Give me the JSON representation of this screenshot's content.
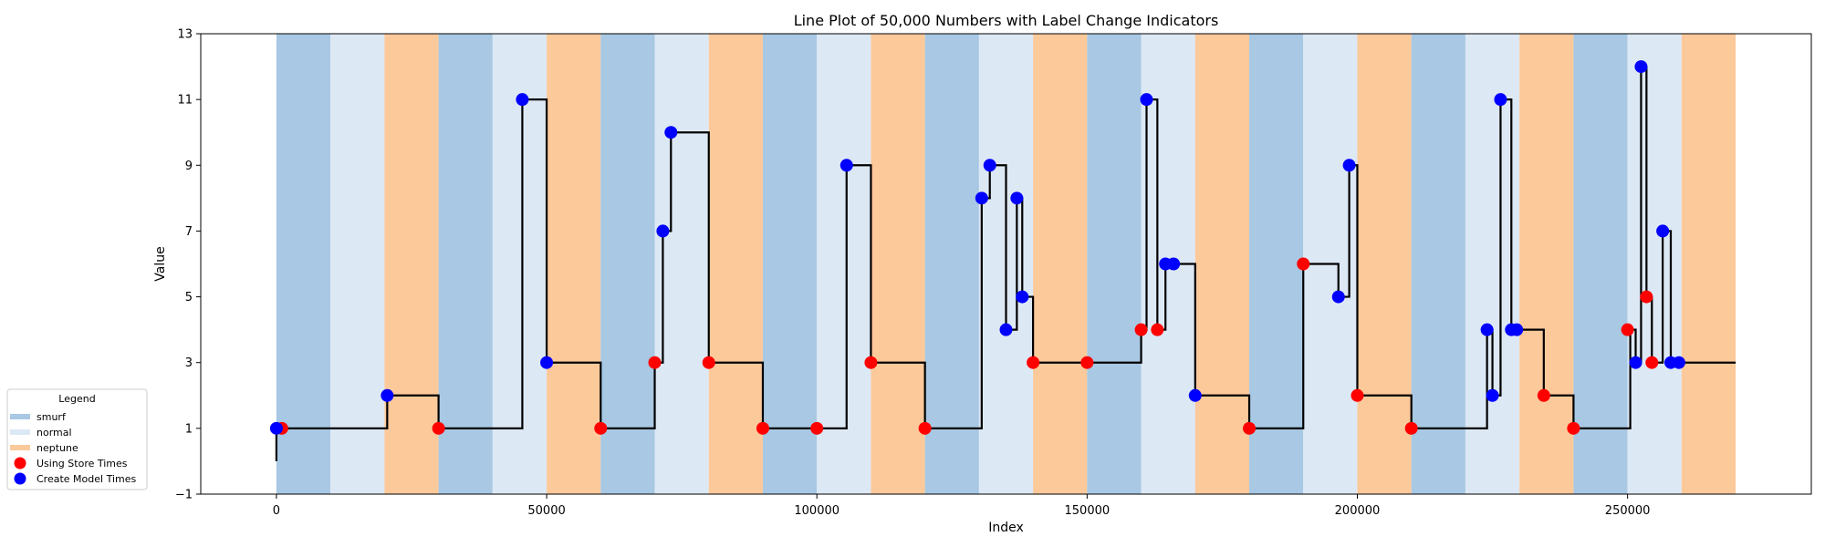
{
  "chart_data": {
    "type": "line",
    "title": "Line Plot of 50,000 Numbers with Label Change Indicators",
    "xlabel": "Index",
    "ylabel": "Value",
    "xlim": [
      -14000,
      284000
    ],
    "ylim": [
      -1,
      13
    ],
    "xticks": [
      0,
      50000,
      100000,
      150000,
      200000,
      250000
    ],
    "yticks": [
      -1,
      1,
      3,
      5,
      7,
      9,
      11,
      13
    ],
    "grid": false,
    "legend": {
      "title": "Legend",
      "placement": "lower-left outside",
      "entries": [
        {
          "label": "smurf",
          "kind": "patch",
          "color": "#a8c8e3"
        },
        {
          "label": "normal",
          "kind": "patch",
          "color": "#dde8f5"
        },
        {
          "label": "neptune",
          "kind": "patch",
          "color": "#fcc99b"
        },
        {
          "label": "Using Store Times",
          "kind": "marker",
          "color": "#ff0000"
        },
        {
          "label": "Create Model Times",
          "kind": "marker",
          "color": "#0000ff"
        }
      ]
    },
    "label_regions": [
      {
        "start": 0,
        "end": 10000,
        "label": "smurf"
      },
      {
        "start": 10000,
        "end": 20000,
        "label": "normal"
      },
      {
        "start": 20000,
        "end": 30000,
        "label": "neptune"
      },
      {
        "start": 30000,
        "end": 40000,
        "label": "smurf"
      },
      {
        "start": 40000,
        "end": 50000,
        "label": "normal"
      },
      {
        "start": 50000,
        "end": 60000,
        "label": "neptune"
      },
      {
        "start": 60000,
        "end": 70000,
        "label": "smurf"
      },
      {
        "start": 70000,
        "end": 80000,
        "label": "normal"
      },
      {
        "start": 80000,
        "end": 90000,
        "label": "neptune"
      },
      {
        "start": 90000,
        "end": 100000,
        "label": "smurf"
      },
      {
        "start": 100000,
        "end": 110000,
        "label": "normal"
      },
      {
        "start": 110000,
        "end": 120000,
        "label": "neptune"
      },
      {
        "start": 120000,
        "end": 130000,
        "label": "smurf"
      },
      {
        "start": 130000,
        "end": 140000,
        "label": "normal"
      },
      {
        "start": 140000,
        "end": 150000,
        "label": "neptune"
      },
      {
        "start": 150000,
        "end": 160000,
        "label": "smurf"
      },
      {
        "start": 160000,
        "end": 170000,
        "label": "normal"
      },
      {
        "start": 170000,
        "end": 180000,
        "label": "neptune"
      },
      {
        "start": 180000,
        "end": 190000,
        "label": "smurf"
      },
      {
        "start": 190000,
        "end": 200000,
        "label": "normal"
      },
      {
        "start": 200000,
        "end": 210000,
        "label": "neptune"
      },
      {
        "start": 210000,
        "end": 220000,
        "label": "smurf"
      },
      {
        "start": 220000,
        "end": 230000,
        "label": "normal"
      },
      {
        "start": 230000,
        "end": 240000,
        "label": "neptune"
      },
      {
        "start": 240000,
        "end": 250000,
        "label": "smurf"
      },
      {
        "start": 250000,
        "end": 260000,
        "label": "normal"
      },
      {
        "start": 260000,
        "end": 270000,
        "label": "neptune"
      }
    ],
    "series": [
      {
        "kind": "step-line",
        "color": "#000000",
        "points": [
          [
            0,
            0
          ],
          [
            0,
            1
          ],
          [
            20500,
            1
          ],
          [
            20500,
            2
          ],
          [
            30000,
            2
          ],
          [
            30000,
            1
          ],
          [
            45500,
            1
          ],
          [
            45500,
            11
          ],
          [
            50000,
            11
          ],
          [
            50000,
            3
          ],
          [
            60000,
            3
          ],
          [
            60000,
            1
          ],
          [
            70000,
            1
          ],
          [
            70000,
            3
          ],
          [
            71500,
            3
          ],
          [
            71500,
            7
          ],
          [
            73000,
            7
          ],
          [
            73000,
            10
          ],
          [
            80000,
            10
          ],
          [
            80000,
            3
          ],
          [
            90000,
            3
          ],
          [
            90000,
            1
          ],
          [
            105500,
            1
          ],
          [
            105500,
            9
          ],
          [
            110000,
            9
          ],
          [
            110000,
            3
          ],
          [
            120000,
            3
          ],
          [
            120000,
            1
          ],
          [
            130500,
            1
          ],
          [
            130500,
            8
          ],
          [
            132000,
            8
          ],
          [
            132000,
            9
          ],
          [
            135000,
            9
          ],
          [
            135000,
            4
          ],
          [
            137000,
            4
          ],
          [
            137000,
            8
          ],
          [
            138000,
            8
          ],
          [
            138000,
            5
          ],
          [
            140000,
            5
          ],
          [
            140000,
            3
          ],
          [
            160000,
            3
          ],
          [
            160000,
            4
          ],
          [
            161000,
            4
          ],
          [
            161000,
            11
          ],
          [
            163000,
            11
          ],
          [
            163000,
            4
          ],
          [
            164500,
            4
          ],
          [
            164500,
            6
          ],
          [
            170000,
            6
          ],
          [
            170000,
            2
          ],
          [
            180000,
            2
          ],
          [
            180000,
            1
          ],
          [
            190000,
            1
          ],
          [
            190000,
            6
          ],
          [
            196500,
            6
          ],
          [
            196500,
            5
          ],
          [
            198500,
            5
          ],
          [
            198500,
            9
          ],
          [
            200000,
            9
          ],
          [
            200000,
            2
          ],
          [
            210000,
            2
          ],
          [
            210000,
            1
          ],
          [
            224000,
            1
          ],
          [
            224000,
            4
          ],
          [
            225000,
            4
          ],
          [
            225000,
            2
          ],
          [
            226500,
            2
          ],
          [
            226500,
            11
          ],
          [
            228500,
            11
          ],
          [
            228500,
            4
          ],
          [
            234500,
            4
          ],
          [
            234500,
            2
          ],
          [
            240000,
            2
          ],
          [
            240000,
            1
          ],
          [
            250500,
            1
          ],
          [
            250500,
            4
          ],
          [
            251500,
            4
          ],
          [
            251500,
            3
          ],
          [
            252500,
            3
          ],
          [
            252500,
            12
          ],
          [
            253500,
            12
          ],
          [
            253500,
            5
          ],
          [
            254500,
            5
          ],
          [
            254500,
            3
          ],
          [
            256500,
            3
          ],
          [
            256500,
            7
          ],
          [
            258000,
            7
          ],
          [
            258000,
            3
          ],
          [
            270000,
            3
          ]
        ]
      },
      {
        "name": "Using Store Times",
        "kind": "scatter",
        "color": "#ff0000",
        "points": [
          [
            1000,
            1
          ],
          [
            30000,
            1
          ],
          [
            60000,
            1
          ],
          [
            70000,
            3
          ],
          [
            80000,
            3
          ],
          [
            90000,
            1
          ],
          [
            100000,
            1
          ],
          [
            110000,
            3
          ],
          [
            120000,
            1
          ],
          [
            140000,
            3
          ],
          [
            150000,
            3
          ],
          [
            160000,
            4
          ],
          [
            163000,
            4
          ],
          [
            180000,
            1
          ],
          [
            190000,
            6
          ],
          [
            200000,
            2
          ],
          [
            210000,
            1
          ],
          [
            234500,
            2
          ],
          [
            240000,
            1
          ],
          [
            250000,
            4
          ],
          [
            253500,
            5
          ],
          [
            254500,
            3
          ]
        ]
      },
      {
        "name": "Create Model Times",
        "kind": "scatter",
        "color": "#0000ff",
        "points": [
          [
            0,
            1
          ],
          [
            20500,
            2
          ],
          [
            45500,
            11
          ],
          [
            50000,
            3
          ],
          [
            71500,
            7
          ],
          [
            73000,
            10
          ],
          [
            105500,
            9
          ],
          [
            130500,
            8
          ],
          [
            132000,
            9
          ],
          [
            135000,
            4
          ],
          [
            137000,
            8
          ],
          [
            138000,
            5
          ],
          [
            161000,
            11
          ],
          [
            164500,
            6
          ],
          [
            166000,
            6
          ],
          [
            170000,
            2
          ],
          [
            196500,
            5
          ],
          [
            198500,
            9
          ],
          [
            224000,
            4
          ],
          [
            225000,
            2
          ],
          [
            226500,
            11
          ],
          [
            228500,
            4
          ],
          [
            229500,
            4
          ],
          [
            251500,
            3
          ],
          [
            252500,
            12
          ],
          [
            256500,
            7
          ],
          [
            258000,
            3
          ],
          [
            259500,
            3
          ]
        ]
      }
    ]
  }
}
